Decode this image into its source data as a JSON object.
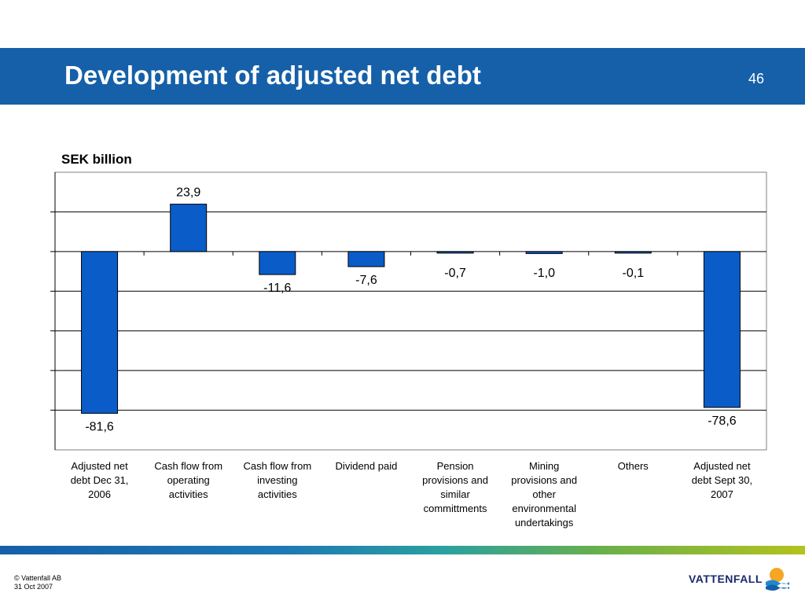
{
  "slide": {
    "title": "Development of adjusted net debt",
    "page_number": "46",
    "unit_label": "SEK billion"
  },
  "footer": {
    "copyright": "© Vattenfall AB",
    "date": "31 Oct 2007",
    "logo_text": "VATTENFALL"
  },
  "colors": {
    "header": "#1560a8",
    "bar": "#0a5dc8"
  },
  "chart_data": {
    "type": "bar",
    "categories": [
      "Adjusted net debt Dec 31, 2006",
      "Cash flow from operating activities",
      "Cash flow from investing activities",
      "Dividend paid",
      "Pension provisions and similar committments",
      "Mining provisions and other environmental undertakings",
      "Others",
      "Adjusted net debt Sept 30, 2007"
    ],
    "values": [
      -81.6,
      23.9,
      -11.6,
      -7.6,
      -0.7,
      -1.0,
      -0.1,
      -78.6
    ],
    "data_labels": [
      "-81,6",
      "23,9",
      "-11,6",
      "-7,6",
      "-0,7",
      "-1,0",
      "-0,1",
      "-78,6"
    ],
    "ylabel": "SEK billion",
    "ylim": [
      -100,
      40
    ],
    "grid": true,
    "legend": "none"
  }
}
